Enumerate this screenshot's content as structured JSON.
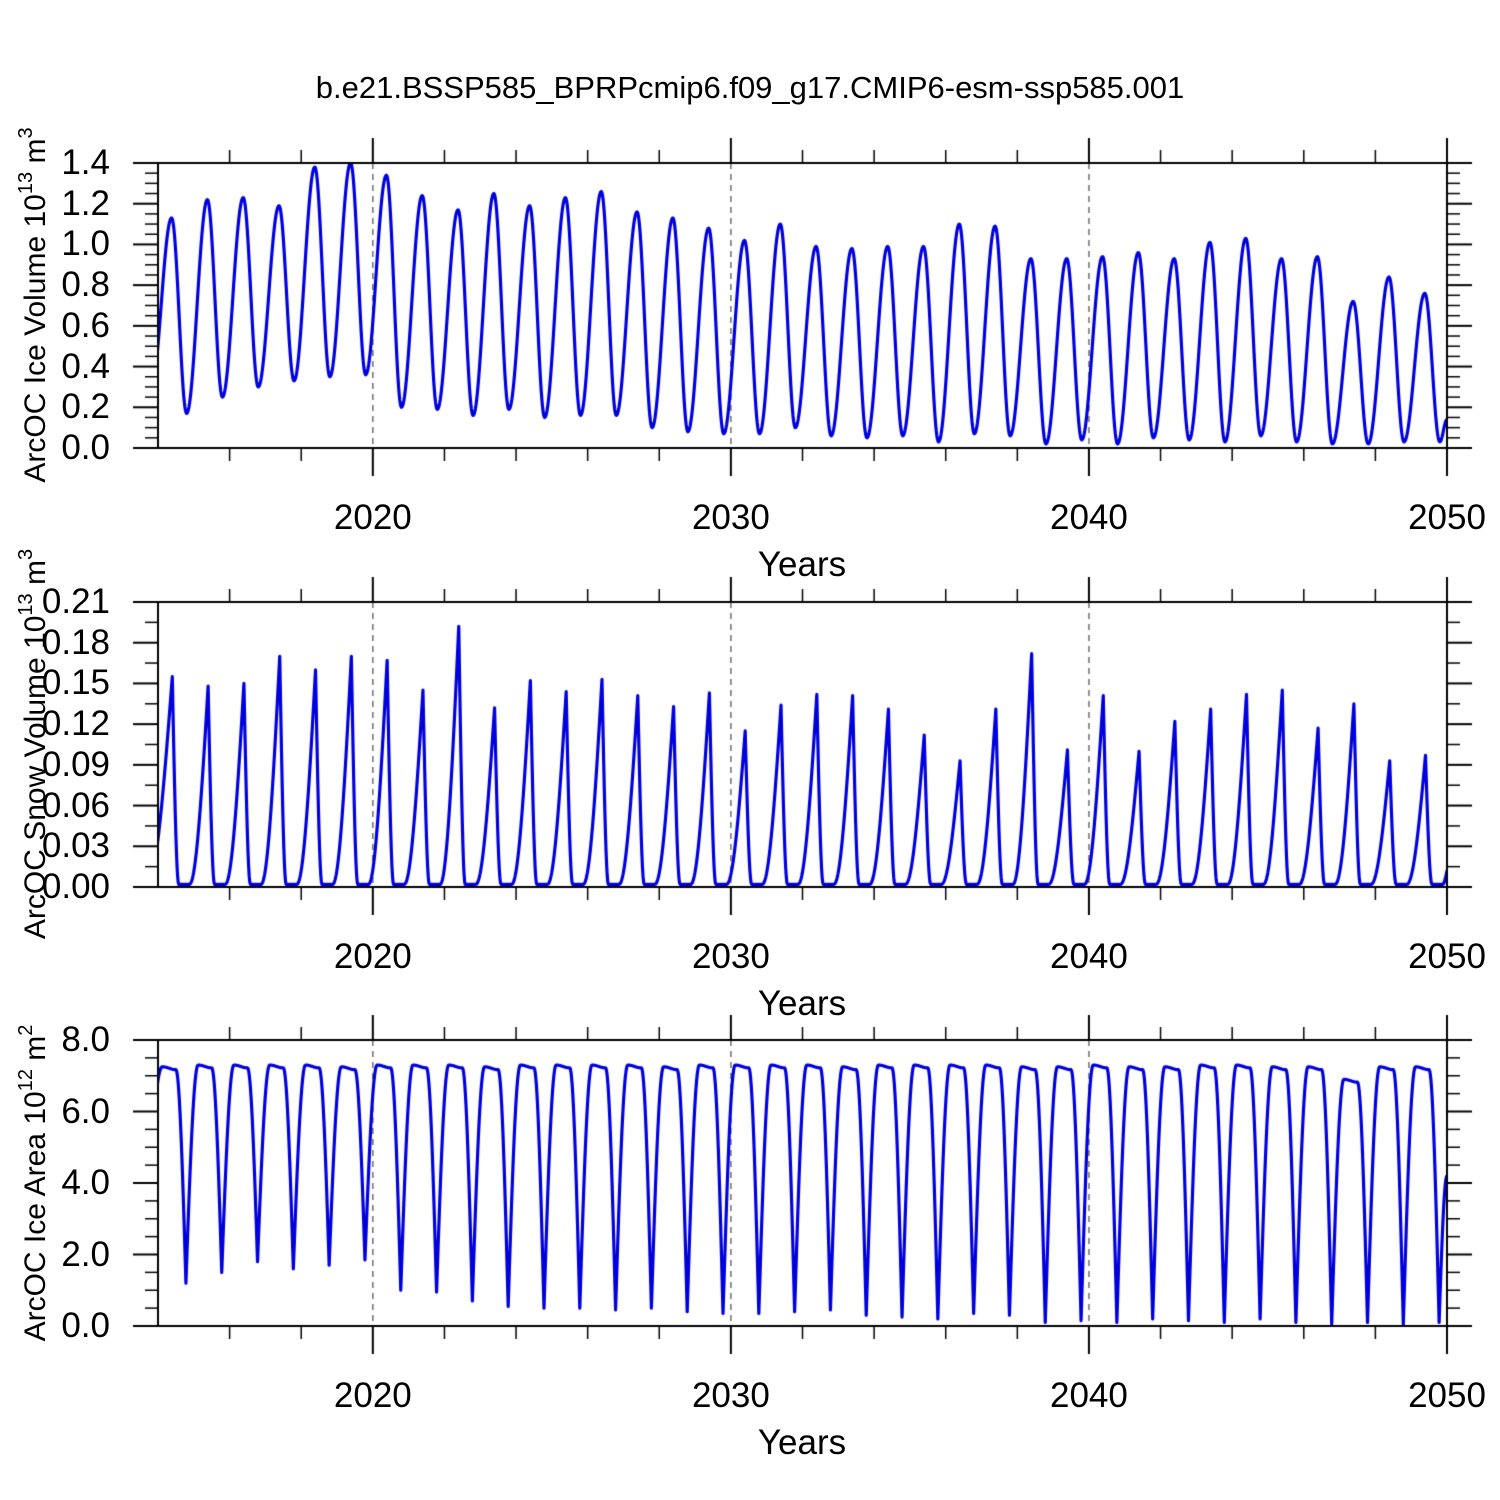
{
  "title": "b.e21.BSSP585_BPRPcmip6.f09_g17.CMIP6-esm-ssp585.001",
  "line_color": "#0000DD",
  "grid_color": "#777777",
  "axis_color": "#000000",
  "chart_data": [
    {
      "type": "line",
      "ylabel": "ArcOC Ice Volume 10^13 m^3",
      "ylabel_parts": [
        "ArcOC Ice Volume 10",
        "13",
        " m",
        "3"
      ],
      "xlabel": "Years",
      "ylim": [
        0.0,
        1.4
      ],
      "xlim": [
        2014,
        2050
      ],
      "ytick_values": [
        0.0,
        0.2,
        0.4,
        0.6,
        0.8,
        1.0,
        1.2,
        1.4
      ],
      "ytick_labels": [
        "0.0",
        "0.2",
        "0.4",
        "0.6",
        "0.8",
        "1.0",
        "1.2",
        "1.4"
      ],
      "ymajor_step": 0.2,
      "yminor_step": 0.05,
      "xtick_values": [
        2020,
        2030,
        2040,
        2050
      ],
      "xtick_labels": [
        "2020",
        "2030",
        "2040",
        "2050"
      ],
      "xminor_step": 2,
      "gridlines_x": [
        2020,
        2030,
        2040
      ],
      "grid_style": "dashed-vertical",
      "legend": "none",
      "series": [
        {
          "name": "ArcOC Ice Volume",
          "shape": "sine",
          "phase": {
            "peak": 0.38,
            "trough": 0.8
          },
          "lead_in": {
            "x": 2013.8,
            "value": 0.28
          },
          "end": {
            "x": 2050.0,
            "value": 0.14
          },
          "years": [
            2014,
            2015,
            2016,
            2017,
            2018,
            2019,
            2020,
            2021,
            2022,
            2023,
            2024,
            2025,
            2026,
            2027,
            2028,
            2029,
            2030,
            2031,
            2032,
            2033,
            2034,
            2035,
            2036,
            2037,
            2038,
            2039,
            2040,
            2041,
            2042,
            2043,
            2044,
            2045,
            2046,
            2047,
            2048,
            2049
          ],
          "annual_max": [
            1.13,
            1.22,
            1.23,
            1.19,
            1.38,
            1.4,
            1.34,
            1.24,
            1.17,
            1.25,
            1.19,
            1.23,
            1.26,
            1.16,
            1.13,
            1.08,
            1.02,
            1.1,
            0.99,
            0.98,
            0.99,
            0.99,
            1.1,
            1.09,
            0.93,
            0.93,
            0.94,
            0.96,
            0.93,
            1.01,
            1.03,
            0.93,
            0.94,
            0.72,
            0.84,
            0.76
          ],
          "annual_min": [
            0.17,
            0.25,
            0.3,
            0.33,
            0.35,
            0.36,
            0.2,
            0.19,
            0.16,
            0.19,
            0.15,
            0.16,
            0.16,
            0.1,
            0.08,
            0.07,
            0.07,
            0.1,
            0.06,
            0.05,
            0.06,
            0.03,
            0.07,
            0.06,
            0.02,
            0.04,
            0.02,
            0.05,
            0.04,
            0.03,
            0.06,
            0.03,
            0.02,
            0.02,
            0.03,
            0.03
          ]
        }
      ]
    },
    {
      "type": "line",
      "ylabel": "ArcOC Snow Volume 10^13 m^3",
      "ylabel_parts": [
        "ArcOC Snow Volume 10",
        "13",
        " m",
        "3"
      ],
      "xlabel": "Years",
      "ylim": [
        0.0,
        0.21
      ],
      "xlim": [
        2014,
        2050
      ],
      "ytick_values": [
        0.0,
        0.03,
        0.06,
        0.09,
        0.12,
        0.15,
        0.18,
        0.21
      ],
      "ytick_labels": [
        "0.00",
        "0.03",
        "0.06",
        "0.09",
        "0.12",
        "0.15",
        "0.18",
        "0.21"
      ],
      "ymajor_step": 0.03,
      "yminor_step": 0.015,
      "xtick_values": [
        2020,
        2030,
        2040,
        2050
      ],
      "xtick_labels": [
        "2020",
        "2030",
        "2040",
        "2050"
      ],
      "xminor_step": 2,
      "gridlines_x": [
        2020,
        2030,
        2040
      ],
      "grid_style": "dashed-vertical",
      "legend": "none",
      "series": [
        {
          "name": "ArcOC Snow Volume",
          "shape": "pulse",
          "phase": {
            "peak": 0.4,
            "trough_start": 0.58,
            "trough_end": 0.88
          },
          "lead_in": {
            "x": 2013.7,
            "value": 0.002
          },
          "end": {
            "x": 2050.0,
            "value": 0.012
          },
          "years": [
            2014,
            2015,
            2016,
            2017,
            2018,
            2019,
            2020,
            2021,
            2022,
            2023,
            2024,
            2025,
            2026,
            2027,
            2028,
            2029,
            2030,
            2031,
            2032,
            2033,
            2034,
            2035,
            2036,
            2037,
            2038,
            2039,
            2040,
            2041,
            2042,
            2043,
            2044,
            2045,
            2046,
            2047,
            2048,
            2049
          ],
          "annual_max": [
            0.155,
            0.148,
            0.15,
            0.17,
            0.16,
            0.17,
            0.167,
            0.145,
            0.192,
            0.132,
            0.152,
            0.144,
            0.153,
            0.141,
            0.133,
            0.143,
            0.115,
            0.134,
            0.142,
            0.141,
            0.131,
            0.112,
            0.093,
            0.131,
            0.172,
            0.101,
            0.141,
            0.1,
            0.122,
            0.131,
            0.142,
            0.145,
            0.117,
            0.135,
            0.093,
            0.097
          ],
          "annual_min": [
            0.002,
            0.002,
            0.002,
            0.002,
            0.002,
            0.002,
            0.002,
            0.002,
            0.002,
            0.002,
            0.002,
            0.002,
            0.002,
            0.002,
            0.002,
            0.002,
            0.002,
            0.002,
            0.002,
            0.002,
            0.002,
            0.002,
            0.002,
            0.002,
            0.002,
            0.002,
            0.002,
            0.002,
            0.002,
            0.002,
            0.002,
            0.002,
            0.002,
            0.002,
            0.002,
            0.002
          ]
        }
      ]
    },
    {
      "type": "line",
      "ylabel": "ArcOC Ice Area 10^12 m^2",
      "ylabel_parts": [
        "ArcOC Ice Area 10",
        "12",
        " m",
        "2"
      ],
      "xlabel": "Years",
      "ylim": [
        0.0,
        8.0
      ],
      "xlim": [
        2014,
        2050
      ],
      "ytick_values": [
        0.0,
        2.0,
        4.0,
        6.0,
        8.0
      ],
      "ytick_labels": [
        "0.0",
        "2.0",
        "4.0",
        "6.0",
        "8.0"
      ],
      "ymajor_step": 2.0,
      "yminor_step": 0.5,
      "xtick_values": [
        2020,
        2030,
        2040,
        2050
      ],
      "xtick_labels": [
        "2020",
        "2030",
        "2040",
        "2050"
      ],
      "xminor_step": 2,
      "gridlines_x": [
        2020,
        2030,
        2040
      ],
      "grid_style": "dashed-vertical",
      "legend": "none",
      "series": [
        {
          "name": "ArcOC Ice Area",
          "shape": "plateau",
          "phase": {
            "plateau_start": 0.12,
            "plateau_end": 0.5,
            "plateau_drop": 0.08,
            "trough": 0.78
          },
          "lead_in": {
            "x": 2013.6,
            "value": 1.5
          },
          "end": {
            "x": 2050.0,
            "value": 4.2
          },
          "years": [
            2014,
            2015,
            2016,
            2017,
            2018,
            2019,
            2020,
            2021,
            2022,
            2023,
            2024,
            2025,
            2026,
            2027,
            2028,
            2029,
            2030,
            2031,
            2032,
            2033,
            2034,
            2035,
            2036,
            2037,
            2038,
            2039,
            2040,
            2041,
            2042,
            2043,
            2044,
            2045,
            2046,
            2047,
            2048,
            2049
          ],
          "annual_max": [
            7.25,
            7.3,
            7.3,
            7.3,
            7.3,
            7.25,
            7.3,
            7.3,
            7.3,
            7.25,
            7.3,
            7.3,
            7.3,
            7.3,
            7.25,
            7.3,
            7.3,
            7.3,
            7.3,
            7.25,
            7.3,
            7.3,
            7.3,
            7.3,
            7.25,
            7.25,
            7.3,
            7.25,
            7.25,
            7.3,
            7.3,
            7.25,
            7.25,
            6.9,
            7.25,
            7.25
          ],
          "annual_min": [
            1.2,
            1.5,
            1.8,
            1.6,
            1.7,
            1.85,
            1.0,
            0.95,
            0.7,
            0.55,
            0.5,
            0.5,
            0.45,
            0.5,
            0.4,
            0.35,
            0.35,
            0.4,
            0.45,
            0.3,
            0.25,
            0.2,
            0.35,
            0.3,
            0.1,
            0.15,
            0.1,
            0.2,
            0.15,
            0.1,
            0.2,
            0.1,
            0.05,
            0.1,
            0.05,
            0.1
          ]
        }
      ]
    }
  ]
}
